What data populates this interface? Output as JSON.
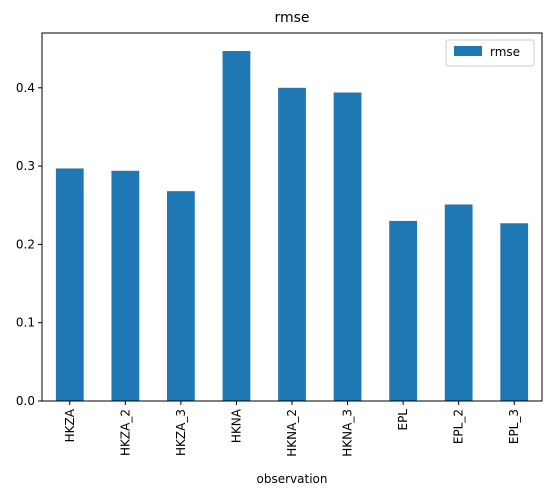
{
  "chart_data": {
    "type": "bar",
    "title": "rmse",
    "xlabel": "observation",
    "ylabel": "",
    "categories": [
      "HKZA",
      "HKZA_2",
      "HKZA_3",
      "HKNA",
      "HKNA_2",
      "HKNA_3",
      "EPL",
      "EPL_2",
      "EPL_3"
    ],
    "series": [
      {
        "name": "rmse",
        "color": "#1f77b4",
        "values": [
          0.297,
          0.294,
          0.268,
          0.447,
          0.4,
          0.394,
          0.23,
          0.251,
          0.227
        ]
      }
    ],
    "ylim": [
      0,
      0.47
    ],
    "yticks": [
      "0.0",
      "0.1",
      "0.2",
      "0.3",
      "0.4"
    ],
    "grid": false,
    "legend": {
      "position": "top-right"
    }
  }
}
